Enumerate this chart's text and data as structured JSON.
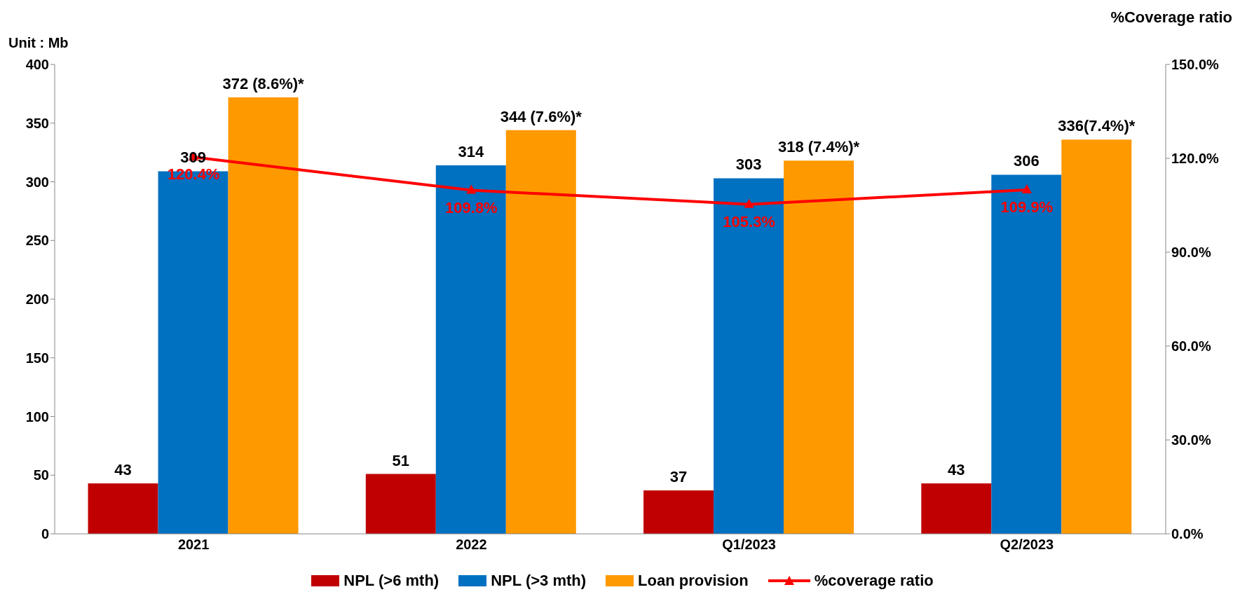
{
  "chart_data": {
    "type": "bar",
    "ylabel": "Unit : Mb",
    "y2label": "%Coverage ratio",
    "categories": [
      "2021",
      "2022",
      "Q1/2023",
      "Q2/2023"
    ],
    "series": [
      {
        "name": "NPL (>6 mth)",
        "color": "#c00000",
        "values": [
          43,
          51,
          37,
          43
        ],
        "value_labels": [
          "43",
          "51",
          "37",
          "43"
        ]
      },
      {
        "name": "NPL (>3 mth)",
        "color": "#0070c0",
        "values": [
          309,
          314,
          303,
          306
        ],
        "value_labels": [
          "309",
          "314",
          "303",
          "306"
        ]
      },
      {
        "name": "Loan provision",
        "color": "#ff9900",
        "values": [
          372,
          344,
          318,
          336
        ],
        "value_labels": [
          "372 (8.6%)*",
          "344 (7.6%)*",
          "318 (7.4%)*",
          "336(7.4%)*"
        ]
      },
      {
        "name": "%coverage ratio",
        "type": "line",
        "axis": "y2",
        "color": "#ff0000",
        "values": [
          120.4,
          109.8,
          105.3,
          109.9
        ],
        "value_labels": [
          "120.4%",
          "109.8%",
          "105.3%",
          "109.9%"
        ],
        "marker": "triangle",
        "line_style": "solid"
      }
    ],
    "ylim": [
      0,
      400
    ],
    "yticks": [
      0,
      50,
      100,
      150,
      200,
      250,
      300,
      350,
      400
    ],
    "y2lim": [
      0,
      150
    ],
    "y2ticks": [
      {
        "value": 0,
        "label": "0.0%"
      },
      {
        "value": 30,
        "label": "30.0%"
      },
      {
        "value": 60,
        "label": "60.0%"
      },
      {
        "value": 90,
        "label": "90.0%"
      },
      {
        "value": 120,
        "label": "120.0%"
      },
      {
        "value": 150,
        "label": "150.0%"
      }
    ],
    "grid": false,
    "legend": "bottom"
  }
}
